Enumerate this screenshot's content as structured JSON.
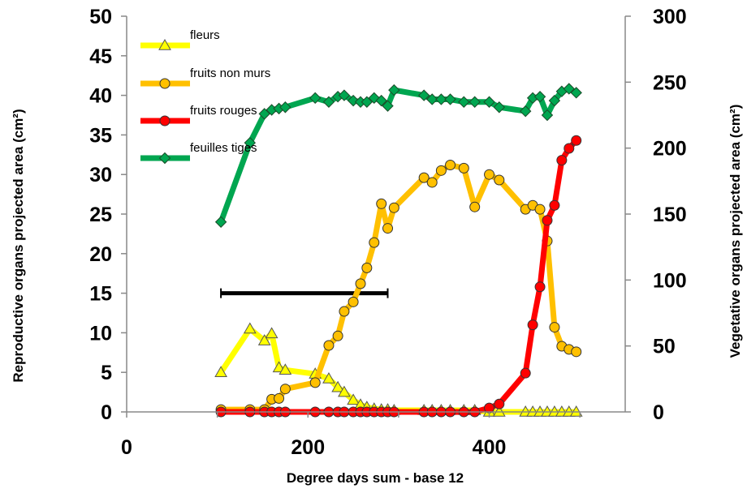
{
  "chart_data": {
    "type": "line",
    "xlabel": "Degree days sum - base 12",
    "ylabel_left": "Reproductive organs projected area (cm²)",
    "ylabel_right": "Vegetative organs projected area (cm²)",
    "x_ticks": [
      "0",
      "200",
      "400"
    ],
    "y_left_ticks": [
      "0",
      "5",
      "10",
      "15",
      "20",
      "25",
      "30",
      "35",
      "40",
      "45",
      "50"
    ],
    "y_right_ticks": [
      "0",
      "50",
      "100",
      "150",
      "200",
      "250",
      "300"
    ],
    "xlim": [
      0,
      550
    ],
    "ylim_left": [
      0,
      50
    ],
    "ylim_right": [
      0,
      300
    ],
    "grid": false,
    "legend_position": "top-left",
    "series": [
      {
        "name": "fleurs",
        "axis": "left",
        "color": "#FFFF00",
        "marker": "triangle",
        "marker_fill": "#FFFF00",
        "x": [
          104,
          136,
          152,
          160,
          168,
          175,
          208,
          223,
          233,
          240,
          250,
          258,
          265,
          273,
          281,
          288,
          295,
          328,
          337,
          347,
          357,
          372,
          384,
          400,
          411,
          440,
          448,
          456,
          464,
          472,
          480,
          488,
          496
        ],
        "y": [
          5,
          10.5,
          9,
          9.9,
          5.6,
          5.3,
          4.8,
          4.2,
          3.1,
          2.5,
          1.5,
          0.9,
          0.6,
          0.4,
          0.3,
          0.3,
          0.2,
          0.2,
          0.2,
          0.2,
          0.2,
          0.2,
          0.2,
          0,
          0,
          0,
          0,
          0,
          0,
          0,
          0,
          0,
          0
        ]
      },
      {
        "name": "fruits non murs",
        "axis": "left",
        "color": "#FFC000",
        "marker": "circle",
        "marker_fill": "#FFC000",
        "x": [
          104,
          136,
          152,
          160,
          168,
          175,
          208,
          223,
          233,
          240,
          250,
          258,
          265,
          273,
          281,
          288,
          295,
          328,
          337,
          347,
          357,
          372,
          384,
          400,
          411,
          440,
          448,
          456,
          464,
          472,
          480,
          488,
          496
        ],
        "y": [
          0.3,
          0.3,
          0.3,
          1.6,
          1.7,
          2.9,
          3.7,
          8.4,
          9.6,
          12.7,
          13.9,
          16.2,
          18.2,
          21.4,
          26.3,
          23.2,
          25.8,
          29.6,
          29,
          30.5,
          31.2,
          30.8,
          25.9,
          30,
          29.3,
          25.6,
          26.1,
          25.6,
          21.6,
          10.7,
          8.3,
          7.9,
          7.6
        ]
      },
      {
        "name": "fruits rouges",
        "axis": "left",
        "color": "#FF0000",
        "marker": "circle",
        "marker_fill": "#FF0000",
        "x": [
          104,
          136,
          152,
          160,
          168,
          175,
          208,
          223,
          233,
          240,
          250,
          258,
          265,
          273,
          281,
          288,
          295,
          328,
          337,
          347,
          357,
          372,
          384,
          400,
          411,
          440,
          448,
          456,
          464,
          472,
          480,
          488,
          496
        ],
        "y": [
          0,
          0,
          0,
          0,
          0,
          0,
          0,
          0,
          0,
          0,
          0,
          0,
          0,
          0,
          0,
          0,
          0,
          0,
          0,
          0,
          0,
          0,
          0,
          0.5,
          1,
          4.9,
          11,
          15.8,
          24.2,
          26.1,
          31.8,
          33.3,
          34.3
        ]
      },
      {
        "name": "feuilles tiges",
        "axis": "right",
        "color": "#00A650",
        "marker": "diamond",
        "marker_fill": "#00A650",
        "x": [
          104,
          136,
          152,
          160,
          168,
          175,
          208,
          223,
          233,
          240,
          250,
          258,
          265,
          273,
          281,
          288,
          295,
          328,
          337,
          347,
          357,
          372,
          384,
          400,
          411,
          440,
          448,
          456,
          464,
          472,
          480,
          488,
          496
        ],
        "y": [
          144,
          204,
          226,
          229,
          230,
          231,
          238,
          235,
          239,
          240,
          236,
          235,
          235,
          238,
          236,
          232,
          244,
          240,
          237,
          237,
          237,
          235,
          235,
          235,
          231,
          228,
          238,
          239,
          225,
          236,
          243,
          245,
          242
        ]
      }
    ],
    "annotations": [
      {
        "type": "hline",
        "axis": "left",
        "y": 15,
        "x_start": 104,
        "x_end": 288,
        "color": "#000000"
      }
    ]
  }
}
